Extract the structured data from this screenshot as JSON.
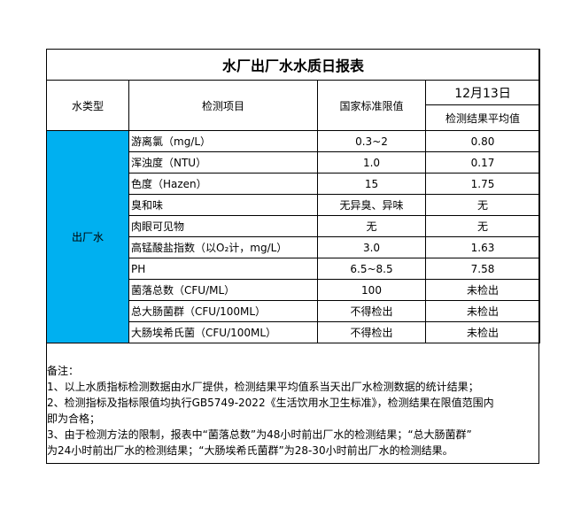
{
  "title": "水厂出厂水水质日报表",
  "header": {
    "water_type": "水类型",
    "item": "检测项目",
    "limit": "国家标准限值",
    "date": "12月13日",
    "result": "检测结果平均值"
  },
  "water_type_value": "出厂水",
  "water_type_color": "#00b0f0",
  "rows": [
    {
      "item": "游离氯（mg/L）",
      "limit": "0.3~2",
      "result": "0.80"
    },
    {
      "item": "浑浊度（NTU）",
      "limit": "1.0",
      "result": "0.17"
    },
    {
      "item": "色度（Hazen）",
      "limit": "15",
      "result": "1.75"
    },
    {
      "item": "臭和味",
      "limit": "无异臭、异味",
      "result": "无"
    },
    {
      "item": "肉眼可见物",
      "limit": "无",
      "result": "无"
    },
    {
      "item": "高锰酸盐指数（以O₂计，mg/L）",
      "limit": "3.0",
      "result": "1.63"
    },
    {
      "item": "PH",
      "limit": "6.5~8.5",
      "result": "7.58"
    },
    {
      "item": "菌落总数（CFU/ML）",
      "limit": "100",
      "result": "未检出"
    },
    {
      "item": "总大肠菌群（CFU/100ML）",
      "limit": "不得检出",
      "result": "未检出"
    },
    {
      "item": "大肠埃希氏菌（CFU/100ML）",
      "limit": "不得检出",
      "result": "未检出"
    }
  ],
  "notes": [
    "备注：",
    "1、以上水质指标检测数据由水厂提供，检测结果平均值系当天出厂水检测数据的统计结果；",
    "2、检测指标及指标限值均执行GB5749-2022《生活饮用水卫生标准》，检测结果在限值范围内",
    "即为合格；",
    "3、由于检测方法的限制，报表中“菌落总数”为48小时前出厂水的检测结果；“总大肠菌群”",
    "为24小时前出厂水的检测结果；“大肠埃希氏菌群”为28-30小时前出厂水的检测结果。"
  ]
}
